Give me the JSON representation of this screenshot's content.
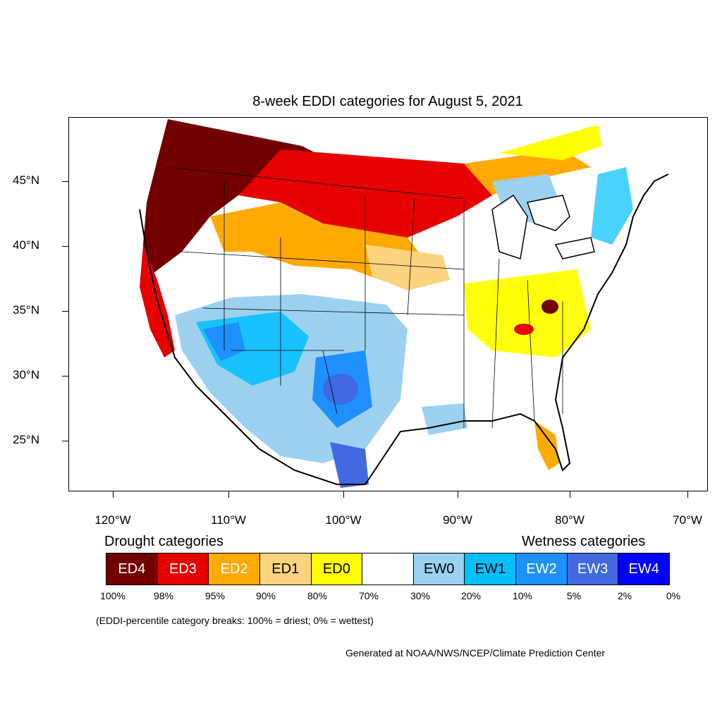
{
  "title": "8-week EDDI categories for August 5, 2021",
  "lat_labels": [
    "45°N",
    "40°N",
    "35°N",
    "30°N",
    "25°N"
  ],
  "lon_labels": [
    "120°W",
    "110°W",
    "100°W",
    "90°W",
    "80°W",
    "70°W"
  ],
  "legend": {
    "drought_title": "Drought categories",
    "wetness_title": "Wetness categories",
    "categories": [
      {
        "label": "ED4",
        "color": "#730000",
        "text_color": "#ffffff"
      },
      {
        "label": "ED3",
        "color": "#e60000",
        "text_color": "#ffffff"
      },
      {
        "label": "ED2",
        "color": "#ffaa00",
        "text_color": "#ffffff"
      },
      {
        "label": "ED1",
        "color": "#fcd37f",
        "text_color": "#000000"
      },
      {
        "label": "ED0",
        "color": "#ffff00",
        "text_color": "#000000"
      },
      {
        "label": "",
        "color": "#ffffff",
        "text_color": "#000000"
      },
      {
        "label": "EW0",
        "color": "#9dd1f0",
        "text_color": "#000000"
      },
      {
        "label": "EW1",
        "color": "#00bfff",
        "text_color": "#000000"
      },
      {
        "label": "EW2",
        "color": "#1e90ff",
        "text_color": "#ffffff"
      },
      {
        "label": "EW3",
        "color": "#4169e1",
        "text_color": "#ffffff"
      },
      {
        "label": "EW4",
        "color": "#0000ff",
        "text_color": "#ffffff"
      }
    ],
    "percent_breaks": [
      "100%",
      "98%",
      "95%",
      "90%",
      "80%",
      "70%",
      "30%",
      "20%",
      "10%",
      "5%",
      "2%",
      "0%"
    ]
  },
  "note": "(EDDI-percentile category breaks: 100% = driest; 0% = wettest)",
  "credit": "Generated at NOAA/NWS/NCEP/Climate Prediction Center"
}
